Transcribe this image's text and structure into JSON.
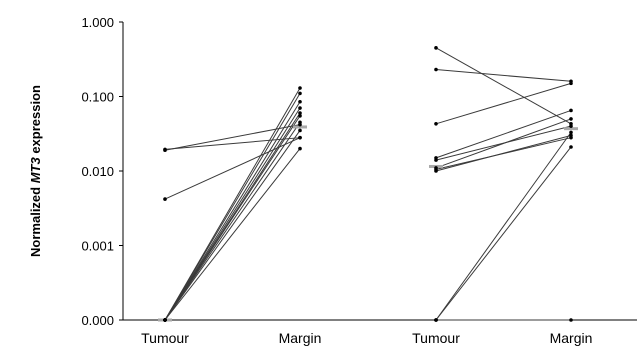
{
  "chart_data": {
    "type": "line",
    "title": "",
    "ylabel": {
      "before": "Normalized ",
      "italic": "MT3",
      "after": " expression"
    },
    "y_scale": "log",
    "y_ticks": [
      "1.000",
      "0.100",
      "0.010",
      "0.001",
      "0.000"
    ],
    "categories": [
      "Tumour",
      "Margin",
      "Tumour",
      "Margin"
    ],
    "groups": [
      {
        "pairs": [
          {
            "tumour": 0.019,
            "margin": 0.042
          },
          {
            "tumour": 0.0195,
            "margin": 0.028
          },
          {
            "tumour": 0.0042,
            "margin": 0.028
          },
          {
            "tumour": 0,
            "margin": 0.13
          },
          {
            "tumour": 0,
            "margin": 0.11
          },
          {
            "tumour": 0,
            "margin": 0.085
          },
          {
            "tumour": 0,
            "margin": 0.07
          },
          {
            "tumour": 0,
            "margin": 0.06
          },
          {
            "tumour": 0,
            "margin": 0.055
          },
          {
            "tumour": 0,
            "margin": 0.045
          },
          {
            "tumour": 0,
            "margin": 0.035
          },
          {
            "tumour": 0,
            "margin": 0.02
          }
        ],
        "tumour_mean": 0,
        "margin_mean": 0.039
      },
      {
        "pairs": [
          {
            "tumour": 0.45,
            "margin": 0.043
          },
          {
            "tumour": 0.23,
            "margin": 0.16
          },
          {
            "tumour": 0.043,
            "margin": 0.15
          },
          {
            "tumour": 0.015,
            "margin": 0.065
          },
          {
            "tumour": 0.014,
            "margin": 0.04
          },
          {
            "tumour": 0.011,
            "margin": 0.05
          },
          {
            "tumour": 0.01,
            "margin": 0.03
          },
          {
            "tumour": 0.0105,
            "margin": 0.028
          },
          {
            "tumour": 0,
            "margin": 0.033
          },
          {
            "tumour": 0,
            "margin": 0.021
          },
          {
            "tumour": 0,
            "margin": 0
          }
        ],
        "tumour_mean": 0.0115,
        "margin_mean": 0.037
      }
    ]
  }
}
